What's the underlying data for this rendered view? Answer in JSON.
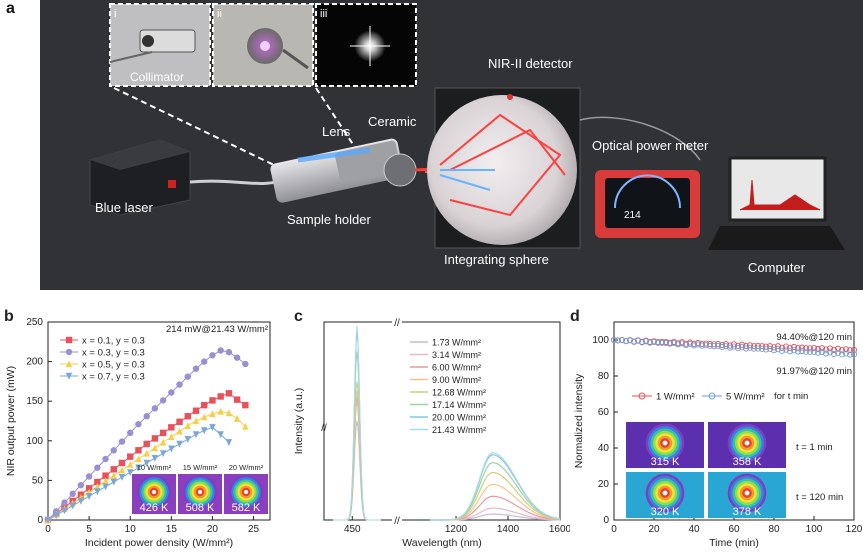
{
  "panel_a": {
    "label": "a",
    "insets": [
      "i",
      "ii",
      "iii"
    ],
    "labels": {
      "collimator": "Collimator",
      "nir_detector": "NIR-II detector",
      "lens": "Lens",
      "ceramic": "Ceramic",
      "optical_power_meter": "Optical power meter",
      "blue_laser": "Blue laser",
      "sample_holder": "Sample holder",
      "integrating_sphere": "Integrating sphere",
      "computer": "Computer",
      "meter_readout": "214"
    }
  },
  "chart_data": [
    {
      "panel": "b",
      "type": "line",
      "xlabel": "Incident power density (W/mm²)",
      "ylabel": "NIR output power (mW)",
      "xlim": [
        0,
        27
      ],
      "ylim": [
        0,
        250
      ],
      "xticks": [
        "0",
        "5",
        "10",
        "15",
        "20",
        "25"
      ],
      "yticks": [
        "0",
        "50",
        "100",
        "150",
        "200",
        "250"
      ],
      "annotation": "214 mW@21.43 W/mm²",
      "series": [
        {
          "name": "x = 0.1, y = 0.3",
          "color": "#e8505b",
          "marker": "square",
          "x": [
            0,
            1,
            2,
            3,
            4,
            5,
            6,
            7,
            8,
            9,
            10,
            11,
            12,
            13,
            14,
            15,
            16,
            17,
            18,
            19,
            20,
            21,
            22,
            23,
            24
          ],
          "y": [
            0,
            8,
            16,
            24,
            32,
            40,
            48,
            56,
            64,
            72,
            80,
            88,
            96,
            103,
            110,
            117,
            124,
            131,
            138,
            145,
            151,
            156,
            160,
            152,
            145
          ]
        },
        {
          "name": "x = 0.3, y = 0.3",
          "color": "#9a8fd0",
          "marker": "circle",
          "x": [
            0,
            1,
            2,
            3,
            4,
            5,
            6,
            7,
            8,
            9,
            10,
            11,
            12,
            13,
            14,
            15,
            16,
            17,
            18,
            19,
            20,
            21,
            22,
            23,
            24
          ],
          "y": [
            0,
            11,
            22,
            33,
            44,
            55,
            66,
            77,
            88,
            99,
            110,
            121,
            131,
            141,
            151,
            161,
            171,
            181,
            191,
            200,
            208,
            214,
            212,
            205,
            197
          ]
        },
        {
          "name": "x = 0.5, y = 0.3",
          "color": "#f5cf4a",
          "marker": "triangle-up",
          "x": [
            0,
            1,
            2,
            3,
            4,
            5,
            6,
            7,
            8,
            9,
            10,
            11,
            12,
            13,
            14,
            15,
            16,
            17,
            18,
            19,
            20,
            21,
            22,
            23,
            24
          ],
          "y": [
            0,
            7,
            14,
            21,
            28,
            35,
            42,
            49,
            56,
            63,
            70,
            77,
            84,
            91,
            98,
            105,
            112,
            119,
            125,
            130,
            134,
            137,
            135,
            128,
            118
          ]
        },
        {
          "name": "x = 0.7, y = 0.3",
          "color": "#7aa7d8",
          "marker": "triangle-down",
          "x": [
            0,
            1,
            2,
            3,
            4,
            5,
            6,
            7,
            8,
            9,
            10,
            11,
            12,
            13,
            14,
            15,
            16,
            17,
            18,
            19,
            20,
            21,
            22
          ],
          "y": [
            0,
            6,
            12,
            18,
            24,
            30,
            36,
            42,
            48,
            54,
            60,
            66,
            72,
            78,
            84,
            90,
            96,
            102,
            108,
            113,
            117,
            108,
            98
          ]
        }
      ],
      "thermal_insets": [
        {
          "power": "10 W/mm²",
          "temp": "426 K"
        },
        {
          "power": "15 W/mm²",
          "temp": "508 K"
        },
        {
          "power": "20 W/mm²",
          "temp": "582 K"
        }
      ]
    },
    {
      "panel": "c",
      "type": "line",
      "xlabel": "Wavelength (nm)",
      "ylabel": "Intensity (a.u.)",
      "xticks": [
        "450",
        "1200",
        "1400",
        "1600"
      ],
      "blue_peak": {
        "center": 455,
        "heights": [
          0.5,
          0.6,
          0.62,
          0.65,
          0.7,
          0.85,
          0.95,
          0.98
        ]
      },
      "nir_band": {
        "center": 1340,
        "range": [
          1150,
          1600
        ]
      },
      "series": [
        {
          "name": "1.73 W/mm²",
          "color": "#c9b8d9",
          "peak": 0.03
        },
        {
          "name": "3.14 W/mm²",
          "color": "#e6b8c8",
          "peak": 0.06
        },
        {
          "name": "6.00 W/mm²",
          "color": "#e89a9a",
          "peak": 0.12
        },
        {
          "name": "9.00 W/mm²",
          "color": "#f3c58e",
          "peak": 0.18
        },
        {
          "name": "12.68 W/mm²",
          "color": "#cfd07a",
          "peak": 0.24
        },
        {
          "name": "17.14 W/mm²",
          "color": "#9bd3a1",
          "peak": 0.29
        },
        {
          "name": "20.00 W/mm²",
          "color": "#84c7e3",
          "peak": 0.33
        },
        {
          "name": "21.43 W/mm²",
          "color": "#a7dbe8",
          "peak": 0.34
        }
      ]
    },
    {
      "panel": "d",
      "type": "line",
      "xlabel": "Time (min)",
      "ylabel": "Normalized intensity",
      "xlim": [
        0,
        120
      ],
      "ylim": [
        0,
        110
      ],
      "xticks": [
        "0",
        "20",
        "40",
        "60",
        "80",
        "100",
        "120"
      ],
      "yticks": [
        "0",
        "20",
        "40",
        "60",
        "80",
        "100"
      ],
      "annotations": [
        "94.40%@120 min",
        "91.97%@120 min"
      ],
      "legend_suffix": "for t min",
      "series": [
        {
          "name": "1 W/mm²",
          "color": "#e8505b",
          "start": 100,
          "end": 94.4
        },
        {
          "name": "5 W/mm²",
          "color": "#6f9fd8",
          "start": 100,
          "end": 91.97
        }
      ],
      "thermal_insets": [
        {
          "temp": "315 K",
          "row": "t = 1 min"
        },
        {
          "temp": "358 K",
          "row": "t = 1 min"
        },
        {
          "temp": "320 K",
          "row": "t = 120 min"
        },
        {
          "temp": "378 K",
          "row": "t = 120 min"
        }
      ],
      "row_labels": [
        "t = 1 min",
        "t = 120 min"
      ]
    }
  ]
}
